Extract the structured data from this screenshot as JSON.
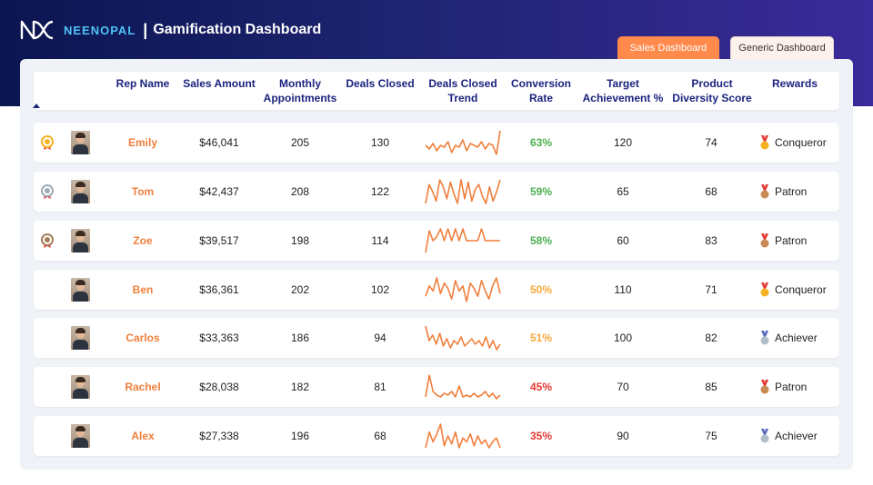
{
  "brand": "NEENOPAL",
  "title": "Gamification Dashboard",
  "separator": "|",
  "tabs": [
    {
      "label": "Sales Dashboard",
      "active": true
    },
    {
      "label": "Generic Dashboard",
      "active": false
    }
  ],
  "columns": {
    "rep_name": "Rep Name",
    "sales_amount": "Sales Amount",
    "monthly_appointments": "Monthly Appointments",
    "deals_closed": "Deals Closed",
    "deals_closed_trend": "Deals Closed Trend",
    "conversion_rate": "Conversion Rate",
    "target_achievement": "Target Achievement %",
    "product_diversity": "Product Diversity Score",
    "rewards": "Rewards"
  },
  "colors": {
    "accent": "#ff8a4c",
    "header_text": "#1a237e",
    "rep_name": "#f07f3c",
    "conversion_good": "#4caf50",
    "conversion_mid": "#f5a93b",
    "conversion_low": "#e53935",
    "sparkline": "#f07f3c"
  },
  "rows": [
    {
      "rank_medal": "gold-rank-icon",
      "name": "Emily",
      "sales": "$46,041",
      "appointments": "205",
      "deals": "130",
      "trend": [
        6,
        4,
        7,
        3,
        6,
        5,
        8,
        2,
        6,
        5,
        9,
        3,
        7,
        6,
        5,
        8,
        4,
        7,
        6,
        1,
        14
      ],
      "conversion": "63%",
      "conversion_level": "good",
      "target": "120",
      "diversity": "74",
      "reward": "Conqueror",
      "reward_medal": "gold"
    },
    {
      "rank_medal": "silver-rank-icon",
      "name": "Tom",
      "sales": "$42,437",
      "appointments": "208",
      "deals": "122",
      "trend": [
        2,
        10,
        7,
        3,
        12,
        9,
        4,
        11,
        6,
        2,
        12,
        4,
        11,
        3,
        8,
        10,
        5,
        2,
        9,
        3,
        7,
        12
      ],
      "conversion": "59%",
      "conversion_level": "good",
      "target": "65",
      "diversity": "68",
      "reward": "Patron",
      "reward_medal": "bronze"
    },
    {
      "rank_medal": "bronze-rank-icon",
      "name": "Zoe",
      "sales": "$39,517",
      "appointments": "198",
      "deals": "114",
      "trend": [
        0,
        11,
        6,
        8,
        12,
        6,
        12,
        6,
        12,
        6,
        12,
        6,
        6,
        6,
        6,
        12,
        6,
        6,
        6,
        6,
        6
      ],
      "conversion": "58%",
      "conversion_level": "good",
      "target": "60",
      "diversity": "83",
      "reward": "Patron",
      "reward_medal": "bronze"
    },
    {
      "rank_medal": "",
      "name": "Ben",
      "sales": "$36,361",
      "appointments": "202",
      "deals": "102",
      "trend": [
        4,
        8,
        6,
        11,
        5,
        9,
        7,
        3,
        10,
        6,
        8,
        2,
        9,
        7,
        4,
        10,
        6,
        3,
        8,
        11,
        5
      ],
      "conversion": "50%",
      "conversion_level": "mid",
      "target": "110",
      "diversity": "71",
      "reward": "Conqueror",
      "reward_medal": "gold"
    },
    {
      "rank_medal": "",
      "name": "Carlos",
      "sales": "$33,363",
      "appointments": "186",
      "deals": "94",
      "trend": [
        14,
        6,
        9,
        4,
        10,
        3,
        7,
        2,
        6,
        4,
        8,
        3,
        5,
        7,
        4,
        6,
        3,
        8,
        2,
        6,
        1,
        4
      ],
      "conversion": "51%",
      "conversion_level": "mid",
      "target": "100",
      "diversity": "82",
      "reward": "Achiever",
      "reward_medal": "silver"
    },
    {
      "rank_medal": "",
      "name": "Rachel",
      "sales": "$28,038",
      "appointments": "182",
      "deals": "81",
      "trend": [
        2,
        14,
        5,
        3,
        2,
        4,
        3,
        5,
        2,
        8,
        2,
        3,
        2,
        4,
        2,
        3,
        5,
        2,
        4,
        1,
        3
      ],
      "conversion": "45%",
      "conversion_level": "low",
      "target": "70",
      "diversity": "85",
      "reward": "Patron",
      "reward_medal": "bronze"
    },
    {
      "rank_medal": "",
      "name": "Alex",
      "sales": "$27,338",
      "appointments": "196",
      "deals": "68",
      "trend": [
        2,
        10,
        5,
        9,
        14,
        3,
        8,
        4,
        10,
        2,
        7,
        5,
        9,
        3,
        8,
        4,
        6,
        2,
        5,
        7,
        2
      ],
      "conversion": "35%",
      "conversion_level": "low",
      "target": "90",
      "diversity": "75",
      "reward": "Achiever",
      "reward_medal": "silver"
    }
  ]
}
